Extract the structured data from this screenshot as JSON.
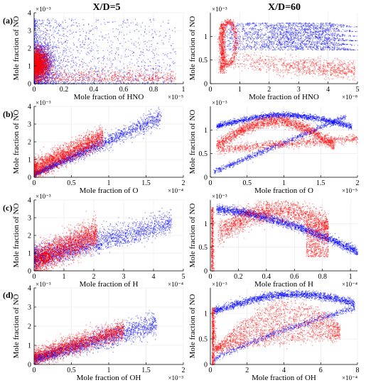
{
  "figure": {
    "column_titles": [
      "X/D=5",
      "X/D=60"
    ],
    "row_labels": [
      "(a)",
      "(b)",
      "(c)",
      "(d)"
    ],
    "colors": {
      "series_a": "#0000ff",
      "series_b": "#ff0000"
    }
  },
  "chart_data": [
    {
      "type": "scatter",
      "row": 0,
      "col": 0,
      "xlabel": "Mole fraction of HNO",
      "ylabel": "Mole fraction of NO",
      "x_exponent": "×10⁻⁵",
      "y_exponent": "×10⁻³",
      "xlim": [
        0,
        1
      ],
      "ylim": [
        0,
        4
      ],
      "xticks": [
        0,
        0.2,
        0.4,
        0.6,
        0.8,
        1
      ],
      "yticks": [
        0,
        1,
        2,
        3,
        4
      ],
      "xticklabels": [
        "0",
        "0.2",
        "0.4",
        "0.6",
        "0.8",
        "1"
      ],
      "yticklabels": [
        "0",
        "1",
        "2",
        "3",
        "4"
      ],
      "grid": true
    },
    {
      "type": "scatter",
      "row": 0,
      "col": 1,
      "xlabel": "Mole fraction of HNO",
      "ylabel": "Mole fraction of NO",
      "x_exponent": "×10⁻⁸",
      "y_exponent": "×10⁻³",
      "xlim": [
        0,
        5
      ],
      "ylim": [
        0,
        1.5
      ],
      "xticks": [
        0,
        1,
        2,
        3,
        4,
        5
      ],
      "yticks": [
        0,
        0.5,
        1
      ],
      "xticklabels": [
        "0",
        "1",
        "2",
        "3",
        "4",
        "5"
      ],
      "yticklabels": [
        "0",
        "0.5",
        "1"
      ],
      "grid": true
    },
    {
      "type": "scatter",
      "row": 1,
      "col": 0,
      "xlabel": "Mole fraction of O",
      "ylabel": "Mole fraction of NO",
      "x_exponent": "×10⁻⁴",
      "y_exponent": "×10⁻³",
      "xlim": [
        0,
        2
      ],
      "ylim": [
        0,
        4
      ],
      "xticks": [
        0,
        0.5,
        1,
        1.5,
        2
      ],
      "yticks": [
        0,
        1,
        2,
        3,
        4
      ],
      "xticklabels": [
        "0",
        "0.5",
        "1",
        "1.5",
        "2"
      ],
      "yticklabels": [
        "0",
        "1",
        "2",
        "3",
        "4"
      ],
      "grid": true
    },
    {
      "type": "scatter",
      "row": 1,
      "col": 1,
      "xlabel": "Mole fraction of O",
      "ylabel": "Mole fraction of NO",
      "x_exponent": "×10⁻⁵",
      "y_exponent": "×10⁻³",
      "xlim": [
        0,
        2
      ],
      "ylim": [
        0,
        1.5
      ],
      "xticks": [
        0,
        0.5,
        1,
        1.5,
        2
      ],
      "yticks": [
        0,
        0.5,
        1
      ],
      "xticklabels": [
        "0",
        "0.5",
        "1",
        "1.5",
        "2"
      ],
      "yticklabels": [
        "0",
        "0.5",
        "1"
      ],
      "grid": true
    },
    {
      "type": "scatter",
      "row": 2,
      "col": 0,
      "xlabel": "Mole fraction of H",
      "ylabel": "Mole fraction of NO",
      "x_exponent": "×10⁻⁴",
      "y_exponent": "×10⁻³",
      "xlim": [
        0,
        5
      ],
      "ylim": [
        0,
        4
      ],
      "xticks": [
        0,
        1,
        2,
        3,
        4,
        5
      ],
      "yticks": [
        0,
        1,
        2,
        3,
        4
      ],
      "xticklabels": [
        "0",
        "1",
        "2",
        "3",
        "4",
        "5"
      ],
      "yticklabels": [
        "0",
        "1",
        "2",
        "3",
        "4"
      ],
      "grid": true
    },
    {
      "type": "scatter",
      "row": 2,
      "col": 1,
      "xlabel": "Mole fraction of H",
      "ylabel": "Mole fraction of NO",
      "x_exponent": "×10⁻⁴",
      "y_exponent": "×10⁻³",
      "xlim": [
        0,
        1.05
      ],
      "ylim": [
        0,
        1.5
      ],
      "xticks": [
        0,
        0.2,
        0.4,
        0.6,
        0.8,
        1
      ],
      "yticks": [
        0,
        0.5,
        1
      ],
      "xticklabels": [
        "0",
        "0.2",
        "0.4",
        "0.6",
        "0.8",
        "1"
      ],
      "yticklabels": [
        "0",
        "0.5",
        "1"
      ],
      "grid": true
    },
    {
      "type": "scatter",
      "row": 3,
      "col": 0,
      "xlabel": "Mole fraction of OH",
      "ylabel": "Mole fraction of NO",
      "x_exponent": "×10⁻³",
      "y_exponent": "×10⁻³",
      "xlim": [
        0,
        2
      ],
      "ylim": [
        0,
        4
      ],
      "xticks": [
        0,
        0.5,
        1,
        1.5,
        2
      ],
      "yticks": [
        0,
        1,
        2,
        3,
        4
      ],
      "xticklabels": [
        "0",
        "0.5",
        "1",
        "1.5",
        "2"
      ],
      "yticklabels": [
        "0",
        "1",
        "2",
        "3",
        "4"
      ],
      "grid": true
    },
    {
      "type": "scatter",
      "row": 3,
      "col": 1,
      "xlabel": "Mole fraction of OH",
      "ylabel": "Mole fraction of NO",
      "x_exponent": "×10⁻⁴",
      "y_exponent": "×10⁻³",
      "xlim": [
        0,
        8
      ],
      "ylim": [
        0,
        1.5
      ],
      "xticks": [
        0,
        2,
        4,
        6,
        8
      ],
      "yticks": [
        0,
        0.5,
        1
      ],
      "xticklabels": [
        "0",
        "2",
        "4",
        "6",
        "8"
      ],
      "yticklabels": [
        "0",
        "0.5",
        "1"
      ],
      "grid": true
    }
  ]
}
